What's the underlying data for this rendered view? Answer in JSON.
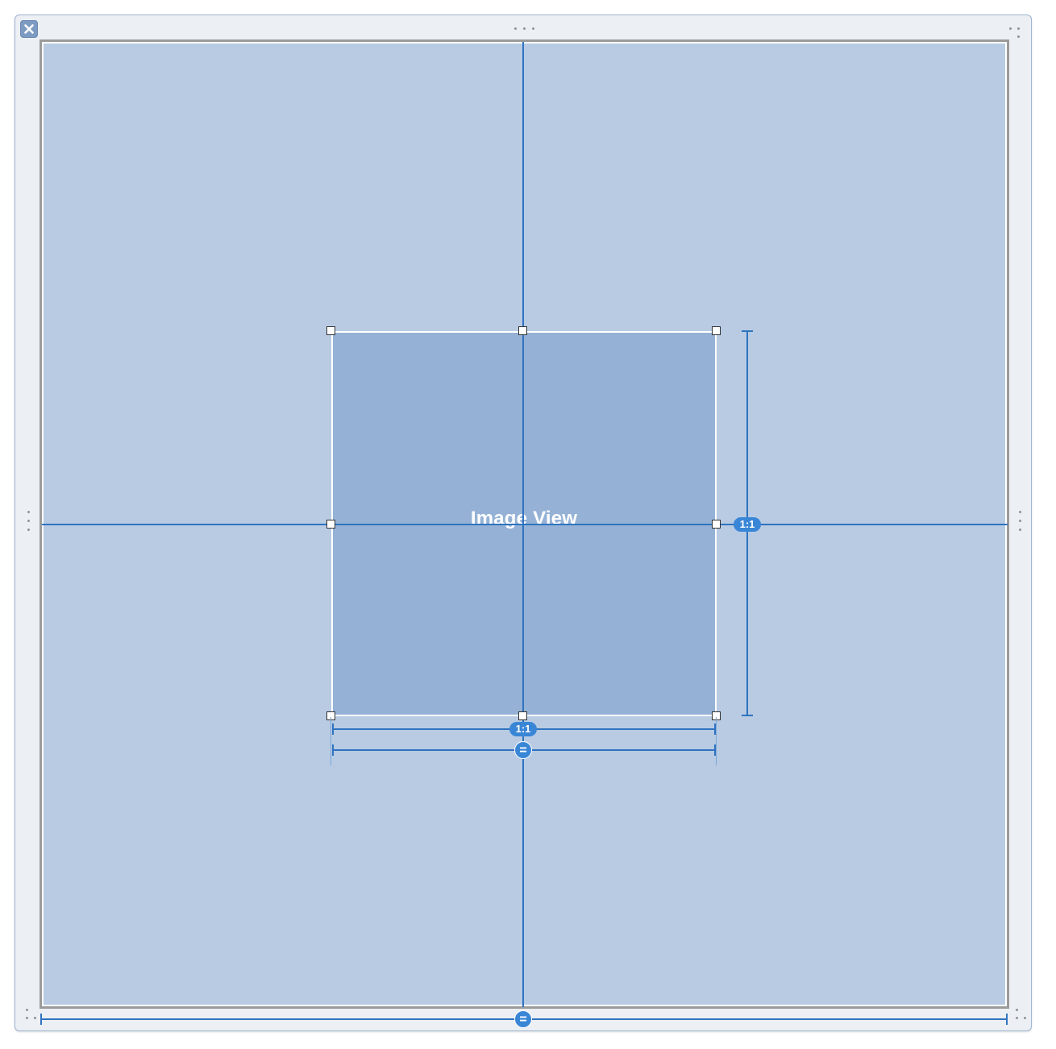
{
  "canvas": {
    "image_view_label": "Image View",
    "aspect_ratio_badge_vertical": "1:1",
    "aspect_ratio_badge_horizontal": "1:1",
    "equal_width_badge": "=",
    "equal_width_badge_bottom": "=",
    "close_glyph": "✕"
  },
  "colors": {
    "constraint_blue": "#2f73bf",
    "badge_blue": "#3a86d6",
    "container_fill": "#b8cbe3",
    "image_view_fill": "#95b2d6"
  },
  "icons": {
    "close": "close-icon",
    "resize_grip": "resize-grip-icon"
  }
}
